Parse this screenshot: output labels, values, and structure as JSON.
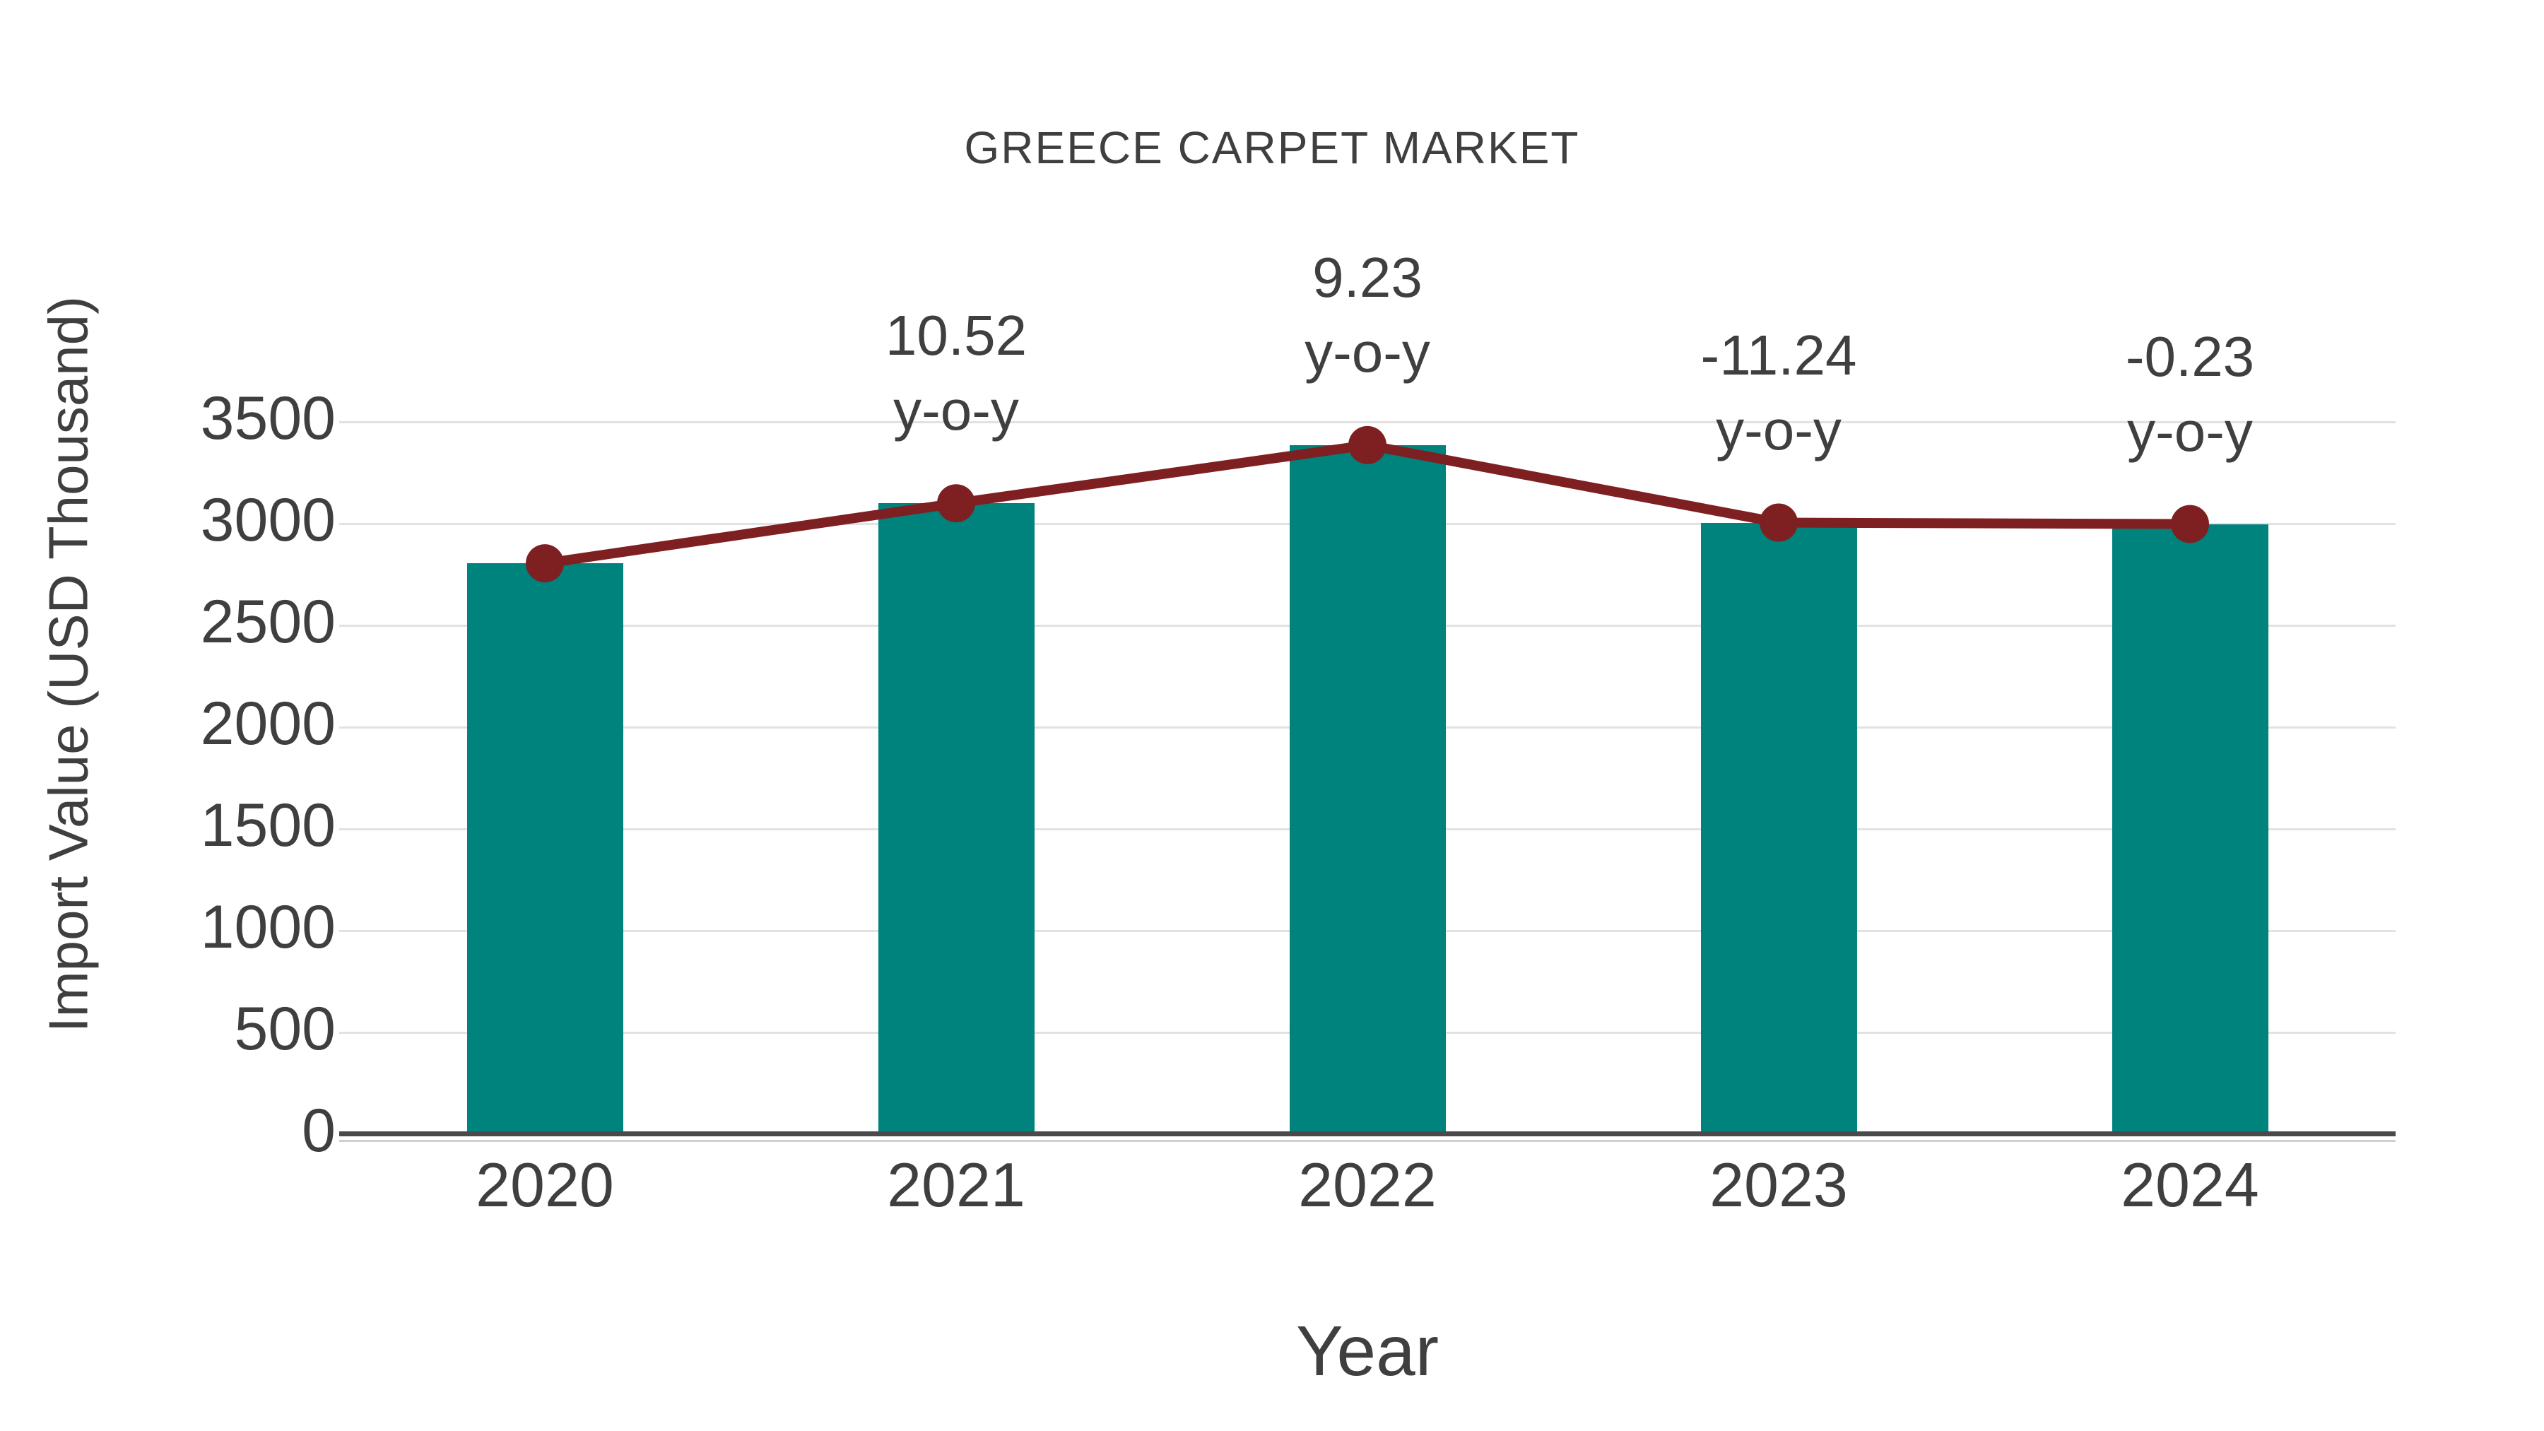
{
  "title": "GREECE CARPET MARKET",
  "chart_data": {
    "type": "bar",
    "title": "GREECE CARPET MARKET",
    "xlabel": "Year",
    "ylabel": "Import Value (USD Thousand)",
    "categories": [
      "2020",
      "2021",
      "2022",
      "2023",
      "2024"
    ],
    "series": [
      {
        "name": "import-value-bars",
        "type": "bar",
        "values": [
          2805,
          3100,
          3386,
          3005,
          2998
        ]
      },
      {
        "name": "import-value-trend-line",
        "type": "line",
        "values": [
          2805,
          3100,
          3386,
          3005,
          2998
        ]
      }
    ],
    "annotations": [
      {
        "category": "2021",
        "line1": "10.52",
        "line2": "y-o-y"
      },
      {
        "category": "2022",
        "line1": "9.23",
        "line2": "y-o-y"
      },
      {
        "category": "2023",
        "line1": "-11.24",
        "line2": "y-o-y"
      },
      {
        "category": "2024",
        "line1": "-0.23",
        "line2": "y-o-y"
      }
    ],
    "y_ticks": [
      0,
      500,
      1000,
      1500,
      2000,
      2500,
      3000,
      3500
    ],
    "ylim": [
      0,
      3500
    ],
    "grid": "horizontal",
    "legend": "none",
    "colors": {
      "bar": "#00827D",
      "line": "#7E2022",
      "marker": "#7E2022",
      "text": "#3F3F3F",
      "grid": "#E2E2E2",
      "axis": "#4A4A4A",
      "axis_sub": "#CFCFCF"
    }
  }
}
